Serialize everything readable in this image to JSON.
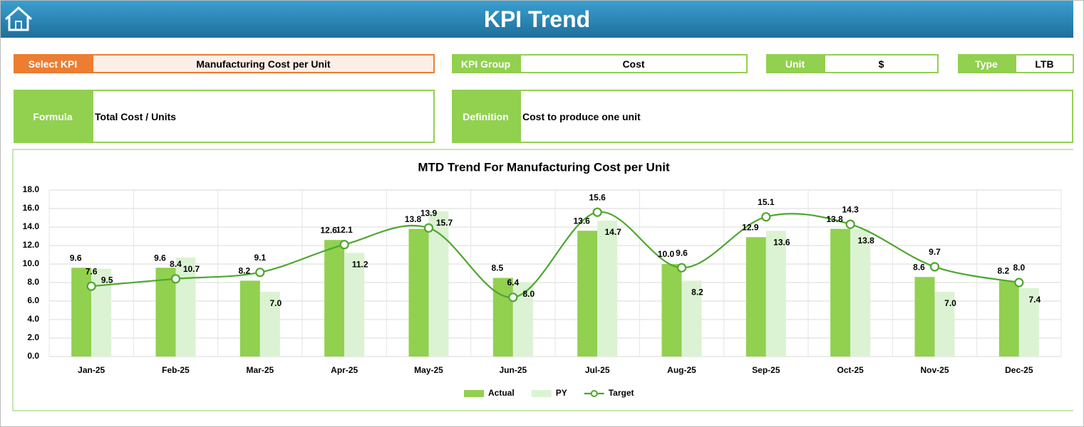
{
  "header": {
    "title": "KPI Trend"
  },
  "fields": {
    "select_kpi": {
      "label": "Select KPI",
      "value": "Manufacturing Cost per Unit"
    },
    "kpi_group": {
      "label": "KPI Group",
      "value": "Cost"
    },
    "unit": {
      "label": "Unit",
      "value": "$"
    },
    "type": {
      "label": "Type",
      "value": "LTB"
    },
    "formula": {
      "label": "Formula",
      "value": "Total Cost / Units"
    },
    "definition": {
      "label": "Definition",
      "value": "Cost to produce one unit"
    }
  },
  "chart_data": {
    "type": "combo",
    "title": "MTD Trend For Manufacturing Cost per Unit",
    "categories": [
      "Jan-25",
      "Feb-25",
      "Mar-25",
      "Apr-25",
      "May-25",
      "Jun-25",
      "Jul-25",
      "Aug-25",
      "Sep-25",
      "Oct-25",
      "Nov-25",
      "Dec-25"
    ],
    "series": [
      {
        "name": "Actual",
        "kind": "bar",
        "color": "#92d050",
        "values": [
          9.6,
          9.6,
          8.2,
          12.6,
          13.8,
          8.5,
          13.6,
          10.0,
          12.9,
          13.8,
          8.6,
          8.2
        ],
        "value_labels": [
          "9.6",
          "9.6",
          "8.2",
          "12.6",
          "13.8",
          "8.5",
          "13.6",
          "10.0",
          "12.9",
          "13.8",
          "8.6",
          "8.2"
        ]
      },
      {
        "name": "PY",
        "kind": "bar",
        "color": "#dbf3d3",
        "values": [
          9.5,
          10.7,
          7.0,
          11.2,
          15.7,
          8.0,
          14.7,
          8.2,
          13.6,
          13.8,
          7.0,
          7.4
        ],
        "value_labels": [
          "9.5",
          "10.7",
          "7.0",
          "11.2",
          "15.7",
          "8.0",
          "14.7",
          "8.2",
          "13.6",
          "13.8",
          "7.0",
          "7.4"
        ]
      },
      {
        "name": "Target",
        "kind": "line",
        "color": "#4ea72e",
        "values": [
          7.6,
          8.4,
          9.1,
          12.1,
          13.9,
          6.4,
          15.6,
          9.6,
          15.1,
          14.3,
          9.7,
          8.0
        ],
        "value_labels": [
          "7.6",
          "8.4",
          "9.1",
          "12.1",
          "13.9",
          "6.4",
          "15.6",
          "9.6",
          "15.1",
          "14.3",
          "9.7",
          "8.0"
        ]
      }
    ],
    "ylim": [
      0,
      18
    ],
    "yticks": [
      {
        "value": 0,
        "label": "0.0"
      },
      {
        "value": 2,
        "label": "2.0"
      },
      {
        "value": 4,
        "label": "4.0"
      },
      {
        "value": 6,
        "label": "6.0"
      },
      {
        "value": 8,
        "label": "8.0"
      },
      {
        "value": 10,
        "label": "10.0"
      },
      {
        "value": 12,
        "label": "12.0"
      },
      {
        "value": 14,
        "label": "14.0"
      },
      {
        "value": 16,
        "label": "16.0"
      },
      {
        "value": 18,
        "label": "18.0"
      }
    ],
    "grid": true,
    "legend": "bottom"
  }
}
